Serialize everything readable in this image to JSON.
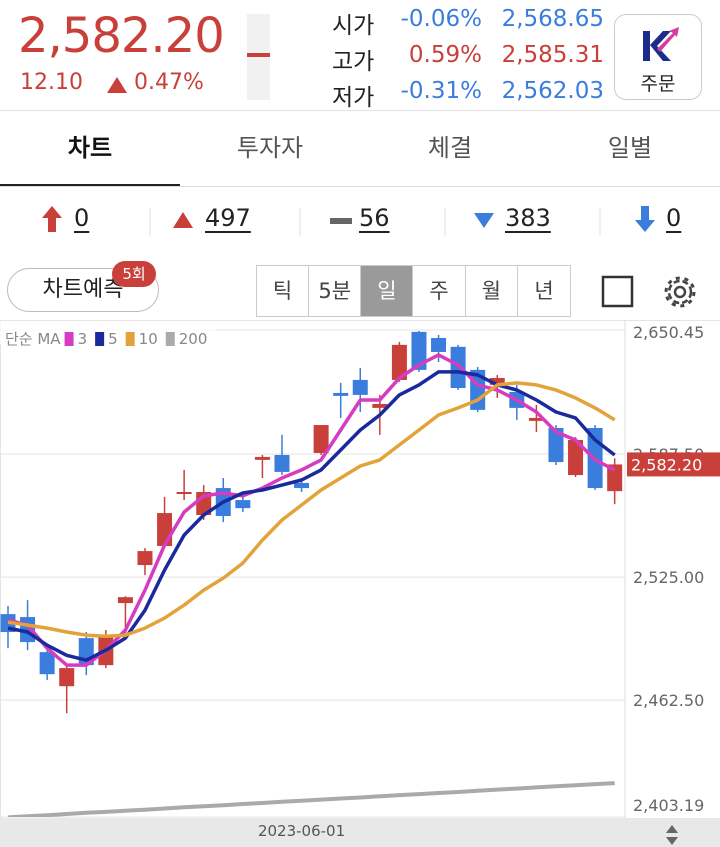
{
  "header": {
    "price": "2,582.20",
    "change": "12.10",
    "change_pct": "0.47%",
    "ohlc_rows": [
      [
        "시가",
        "-0.06%",
        "2,568.65"
      ],
      [
        "고가",
        "0.59%",
        "2,585.31"
      ],
      [
        "저가",
        "-0.31%",
        "2,562.03"
      ]
    ],
    "order_button": "주문"
  },
  "tabs": {
    "items": [
      "차트",
      "투자자",
      "체결",
      "일별"
    ],
    "active": 0
  },
  "counts": [
    0,
    497,
    56,
    383,
    0
  ],
  "controls": {
    "forecast_button": "차트예측",
    "forecast_badge": "5회",
    "periods": [
      "틱",
      "5분",
      "일",
      "주",
      "월",
      "년"
    ],
    "active_period": 2
  },
  "chart_data": {
    "type": "candlestick",
    "legend_title": "단순 MA",
    "categories": [
      null,
      null,
      null,
      null,
      null,
      null,
      null,
      null,
      null,
      null,
      null,
      null,
      null,
      null,
      null,
      "2023-06-01",
      null,
      null,
      null,
      null,
      null,
      null,
      null,
      null,
      null,
      null,
      null,
      null,
      null,
      null,
      null,
      null
    ],
    "up_color": "#c9403a",
    "down_color": "#3b7ddd",
    "ohlc": [
      {
        "open": 2506.2,
        "high": 2510.3,
        "low": 2488.9,
        "close": 2497.1
      },
      {
        "open": 2504.7,
        "high": 2513.3,
        "low": 2487.9,
        "close": 2492.0
      },
      {
        "open": 2486.9,
        "high": 2487.9,
        "low": 2472.7,
        "close": 2475.7
      },
      {
        "open": 2469.6,
        "high": 2480.3,
        "low": 2455.9,
        "close": 2478.8
      },
      {
        "open": 2494.0,
        "high": 2497.1,
        "low": 2475.2,
        "close": 2480.3
      },
      {
        "open": 2480.3,
        "high": 2498.1,
        "low": 2478.8,
        "close": 2494.5
      },
      {
        "open": 2511.8,
        "high": 2515.3,
        "low": 2496.5,
        "close": 2514.8
      },
      {
        "open": 2531.1,
        "high": 2539.7,
        "low": 2526.0,
        "close": 2538.2
      },
      {
        "open": 2540.8,
        "high": 2565.7,
        "low": 2539.7,
        "close": 2557.5
      },
      {
        "open": 2567.2,
        "high": 2579.4,
        "low": 2564.1,
        "close": 2568.2
      },
      {
        "open": 2556.5,
        "high": 2571.7,
        "low": 2554.0,
        "close": 2568.2
      },
      {
        "open": 2570.2,
        "high": 2575.3,
        "low": 2552.9,
        "close": 2556.0
      },
      {
        "open": 2564.1,
        "high": 2566.7,
        "low": 2558.0,
        "close": 2560.0
      },
      {
        "open": 2584.5,
        "high": 2587.0,
        "low": 2575.3,
        "close": 2586.0
      },
      {
        "open": 2587.0,
        "high": 2597.2,
        "low": 2576.8,
        "close": 2578.4
      },
      {
        "open": 2572.8,
        "high": 2575.3,
        "low": 2568.2,
        "close": 2570.2
      },
      {
        "open": 2588.0,
        "high": 2602.2,
        "low": 2587.0,
        "close": 2602.2
      },
      {
        "open": 2618.5,
        "high": 2623.6,
        "low": 2605.8,
        "close": 2617.0
      },
      {
        "open": 2625.1,
        "high": 2631.2,
        "low": 2608.8,
        "close": 2617.5
      },
      {
        "open": 2610.9,
        "high": 2617.5,
        "low": 2597.2,
        "close": 2612.9
      },
      {
        "open": 2625.1,
        "high": 2644.4,
        "low": 2624.1,
        "close": 2642.9
      },
      {
        "open": 2649.5,
        "high": 2650.0,
        "low": 2629.2,
        "close": 2630.2
      },
      {
        "open": 2646.4,
        "high": 2648.0,
        "low": 2634.2,
        "close": 2639.3
      },
      {
        "open": 2641.9,
        "high": 2642.9,
        "low": 2620.0,
        "close": 2621.0
      },
      {
        "open": 2630.2,
        "high": 2631.7,
        "low": 2608.8,
        "close": 2609.9
      },
      {
        "open": 2622.6,
        "high": 2627.6,
        "low": 2616.0,
        "close": 2626.1
      },
      {
        "open": 2619.0,
        "high": 2622.6,
        "low": 2604.8,
        "close": 2610.9
      },
      {
        "open": 2604.3,
        "high": 2612.4,
        "low": 2598.7,
        "close": 2605.8
      },
      {
        "open": 2600.7,
        "high": 2602.2,
        "low": 2581.9,
        "close": 2583.4
      },
      {
        "open": 2576.8,
        "high": 2596.1,
        "low": 2575.8,
        "close": 2594.6
      },
      {
        "open": 2600.7,
        "high": 2602.2,
        "low": 2569.2,
        "close": 2570.2
      },
      {
        "open": 2568.65,
        "high": 2585.31,
        "low": 2562.03,
        "close": 2582.2
      }
    ],
    "series": [
      {
        "name": "3",
        "color": "#d63cc1",
        "values": [
          2503.2,
          2500.6,
          2488.9,
          2480.3,
          2480.3,
          2487.9,
          2498.1,
          2518.4,
          2541.3,
          2558.0,
          2566.2,
          2567.7,
          2566.2,
          2570.2,
          2575.3,
          2579.4,
          2584.5,
          2599.7,
          2614.9,
          2614.9,
          2626.1,
          2632.7,
          2637.8,
          2632.7,
          2622.6,
          2620.0,
          2614.9,
          2608.8,
          2598.7,
          2594.6,
          2584.5,
          2579.4
        ]
      },
      {
        "name": "5",
        "color": "#1a2a9c",
        "values": [
          2499.1,
          2497.1,
          2490.4,
          2485.3,
          2482.8,
          2487.9,
          2494.0,
          2508.2,
          2528.6,
          2546.3,
          2556.5,
          2563.1,
          2567.7,
          2569.2,
          2571.7,
          2574.3,
          2579.4,
          2589.5,
          2599.7,
          2607.3,
          2617.5,
          2622.6,
          2629.2,
          2629.2,
          2627.6,
          2622.6,
          2620.0,
          2614.9,
          2608.8,
          2605.8,
          2594.6,
          2587.0
        ]
      },
      {
        "name": "10",
        "color": "#e3a33b",
        "values": [
          2502.1,
          2500.6,
          2499.1,
          2497.1,
          2495.5,
          2495.0,
          2495.5,
          2499.1,
          2504.2,
          2510.8,
          2518.4,
          2524.5,
          2532.1,
          2543.8,
          2554.0,
          2561.6,
          2569.2,
          2575.3,
          2581.4,
          2584.5,
          2592.1,
          2599.7,
          2607.3,
          2610.9,
          2614.9,
          2622.6,
          2623.6,
          2622.6,
          2620.0,
          2616.0,
          2610.9,
          2604.8
        ]
      },
      {
        "name": "200",
        "color": "#aaaaaa",
        "values": [
          2403.0,
          2403.6,
          2404.1,
          2404.7,
          2405.3,
          2405.8,
          2406.4,
          2406.9,
          2407.5,
          2408.1,
          2408.6,
          2409.2,
          2409.8,
          2410.3,
          2410.9,
          2411.4,
          2412.0,
          2412.6,
          2413.1,
          2413.7,
          2414.3,
          2414.8,
          2415.4,
          2415.9,
          2416.5,
          2417.1,
          2417.6,
          2418.2,
          2418.8,
          2419.3,
          2419.9,
          2420.4
        ]
      }
    ],
    "ylim": [
      2403.19,
      2650.45
    ],
    "yticks": [
      {
        "value": 2403.19,
        "label": "2,403.19"
      },
      {
        "value": 2462.5,
        "label": "2,462.50"
      },
      {
        "value": 2525,
        "label": "2,525.00"
      },
      {
        "value": 2587.5,
        "label": "2,587.50"
      },
      {
        "value": 2650.45,
        "label": "2,650.45"
      }
    ],
    "grid": true,
    "price_line": {
      "value": 2582.2,
      "label": "2,582.20"
    }
  }
}
